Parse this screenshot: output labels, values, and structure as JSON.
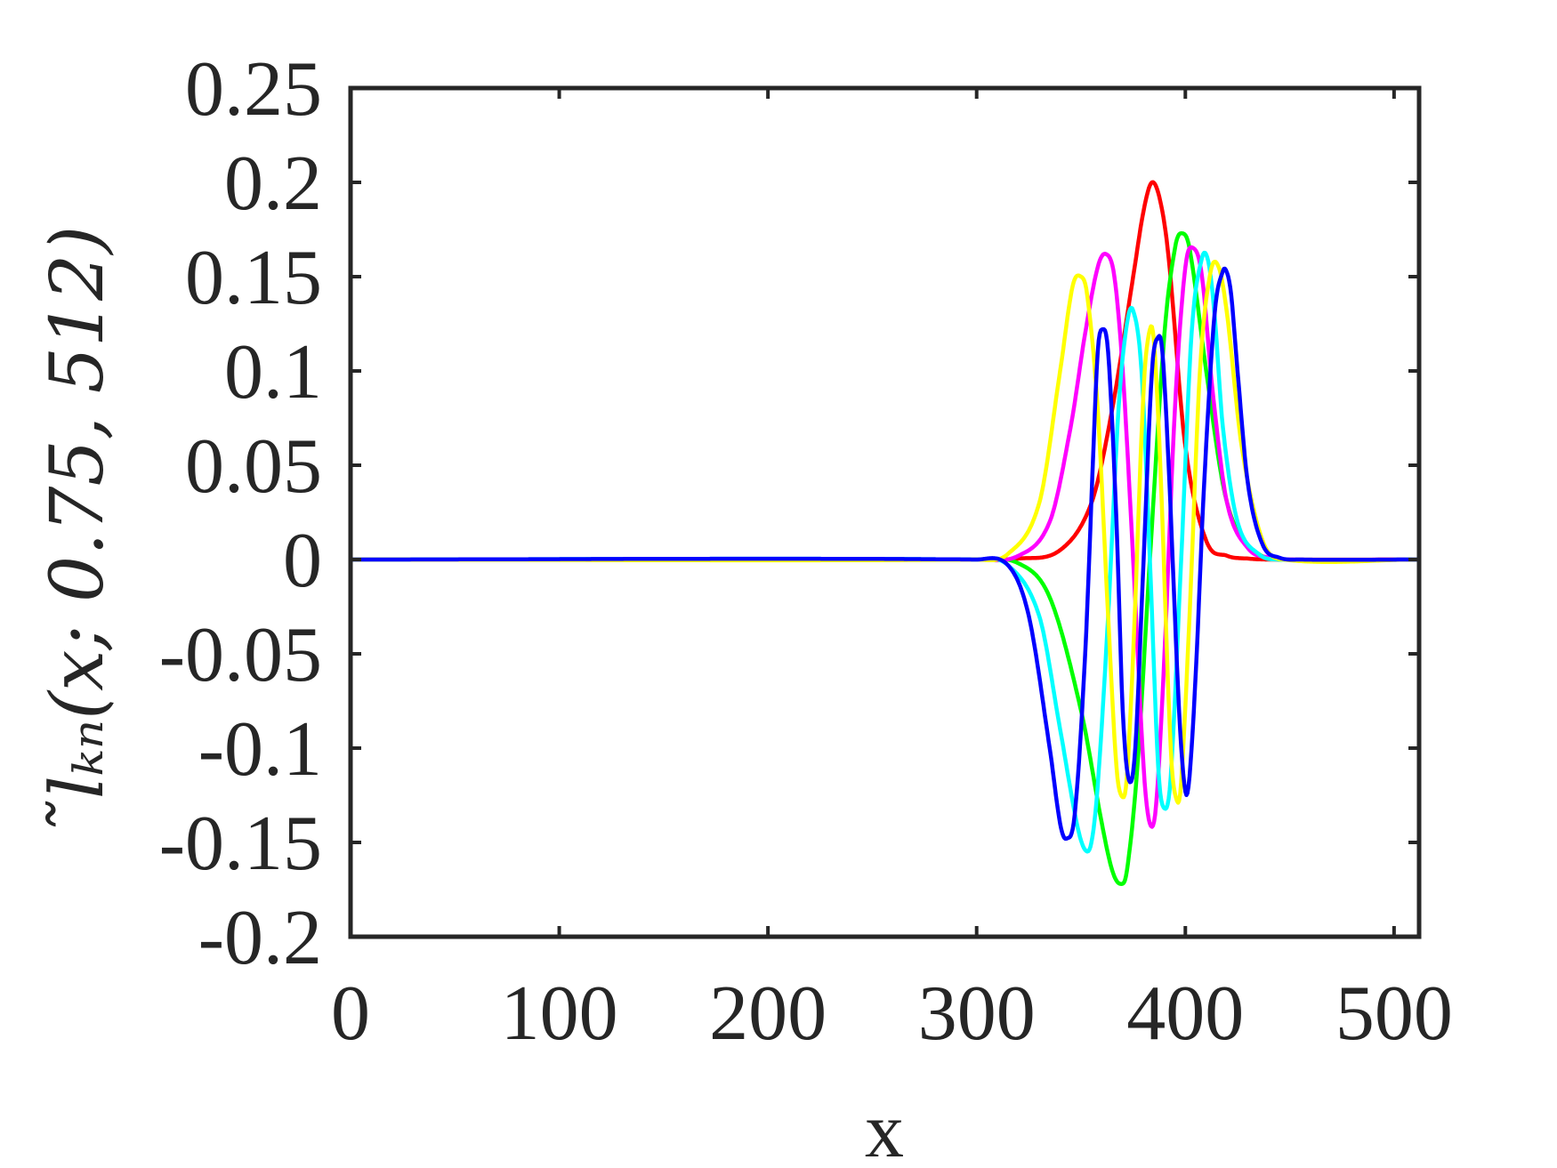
{
  "chart_data": {
    "type": "line",
    "xlabel": "x",
    "ylabel": "̃lₖₙ(x; 0.75, 512)",
    "xlim": [
      0,
      512
    ],
    "ylim": [
      -0.2,
      0.25
    ],
    "xticks": [
      0,
      100,
      200,
      300,
      400,
      500
    ],
    "xtick_labels": [
      "0",
      "100",
      "200",
      "300",
      "400",
      "500"
    ],
    "yticks": [
      -0.2,
      -0.15,
      -0.1,
      -0.05,
      0,
      0.05,
      0.1,
      0.15,
      0.2,
      0.25
    ],
    "ytick_labels": [
      "-0.2",
      "-0.15",
      "-0.1",
      "-0.05",
      "0",
      "0.05",
      "0.1",
      "0.15",
      "0.2",
      "0.25"
    ],
    "grid": false,
    "legend": "none",
    "series": [
      {
        "color": "#ff0000",
        "x": [
          0,
          300,
          320,
          340,
          355,
          365,
          375,
          380,
          384,
          388,
          392,
          400,
          410,
          420,
          430,
          440,
          512
        ],
        "y": [
          0,
          0,
          0.0005,
          0.005,
          0.03,
          0.08,
          0.15,
          0.185,
          0.2,
          0.19,
          0.16,
          0.06,
          0.01,
          0.002,
          0.0005,
          0,
          0
        ]
      },
      {
        "color": "#00ff00",
        "x": [
          0,
          300,
          320,
          335,
          350,
          360,
          365,
          369,
          372,
          377,
          383,
          390,
          395,
          398,
          402,
          410,
          418,
          425,
          435,
          445,
          512
        ],
        "y": [
          0,
          0,
          -0.002,
          -0.02,
          -0.08,
          -0.14,
          -0.165,
          -0.172,
          -0.165,
          -0.11,
          0,
          0.12,
          0.165,
          0.173,
          0.165,
          0.1,
          0.04,
          0.015,
          0.003,
          0,
          0
        ]
      },
      {
        "color": "#ff00ff",
        "x": [
          0,
          300,
          320,
          335,
          345,
          352,
          358,
          362,
          366,
          370,
          375,
          380,
          383,
          386,
          390,
          395,
          400,
          404,
          408,
          413,
          420,
          430,
          440,
          450,
          512
        ],
        "y": [
          0,
          0,
          0.002,
          0.02,
          0.07,
          0.12,
          0.155,
          0.162,
          0.15,
          0.1,
          0,
          -0.11,
          -0.14,
          -0.13,
          -0.05,
          0.08,
          0.155,
          0.165,
          0.15,
          0.09,
          0.03,
          0.006,
          0.001,
          0,
          0
        ]
      },
      {
        "color": "#00ffff",
        "x": [
          0,
          300,
          315,
          330,
          340,
          348,
          352,
          355,
          358,
          363,
          368,
          372,
          375,
          379,
          383,
          387,
          390,
          393,
          398,
          403,
          408,
          411,
          414,
          418,
          425,
          435,
          445,
          512
        ],
        "y": [
          0,
          0,
          -0.003,
          -0.03,
          -0.09,
          -0.14,
          -0.154,
          -0.15,
          -0.12,
          -0.03,
          0.08,
          0.125,
          0.132,
          0.1,
          0,
          -0.11,
          -0.132,
          -0.115,
          0,
          0.12,
          0.16,
          0.158,
          0.13,
          0.07,
          0.02,
          0.003,
          0,
          0
        ]
      },
      {
        "color": "#ffff00",
        "x": [
          0,
          300,
          315,
          330,
          340,
          346,
          350,
          353,
          358,
          363,
          367,
          370,
          372,
          375,
          380,
          383,
          385,
          388,
          393,
          396,
          398,
          402,
          407,
          412,
          416,
          420,
          427,
          437,
          447,
          512
        ],
        "y": [
          0,
          0,
          0.003,
          0.03,
          0.1,
          0.145,
          0.15,
          0.14,
          0.08,
          -0.03,
          -0.11,
          -0.126,
          -0.115,
          -0.05,
          0.09,
          0.122,
          0.115,
          0.05,
          -0.1,
          -0.128,
          -0.118,
          -0.03,
          0.1,
          0.152,
          0.155,
          0.13,
          0.06,
          0.01,
          0,
          0
        ]
      },
      {
        "color": "#0000ff",
        "x": [
          0,
          300,
          315,
          325,
          335,
          340,
          343,
          347,
          352,
          356,
          358,
          360,
          363,
          367,
          370,
          373,
          376,
          380,
          384,
          387,
          389,
          392,
          397,
          400,
          402,
          405,
          409,
          414,
          418,
          420,
          422,
          425,
          430,
          437,
          445,
          455,
          512
        ],
        "y": [
          0,
          0,
          -0.003,
          -0.03,
          -0.1,
          -0.14,
          -0.148,
          -0.135,
          -0.05,
          0.06,
          0.11,
          0.122,
          0.11,
          0.02,
          -0.08,
          -0.117,
          -0.1,
          0,
          0.1,
          0.118,
          0.11,
          0.05,
          -0.08,
          -0.123,
          -0.115,
          -0.06,
          0.04,
          0.13,
          0.153,
          0.152,
          0.14,
          0.1,
          0.04,
          0.008,
          0.001,
          0,
          0
        ]
      }
    ]
  }
}
